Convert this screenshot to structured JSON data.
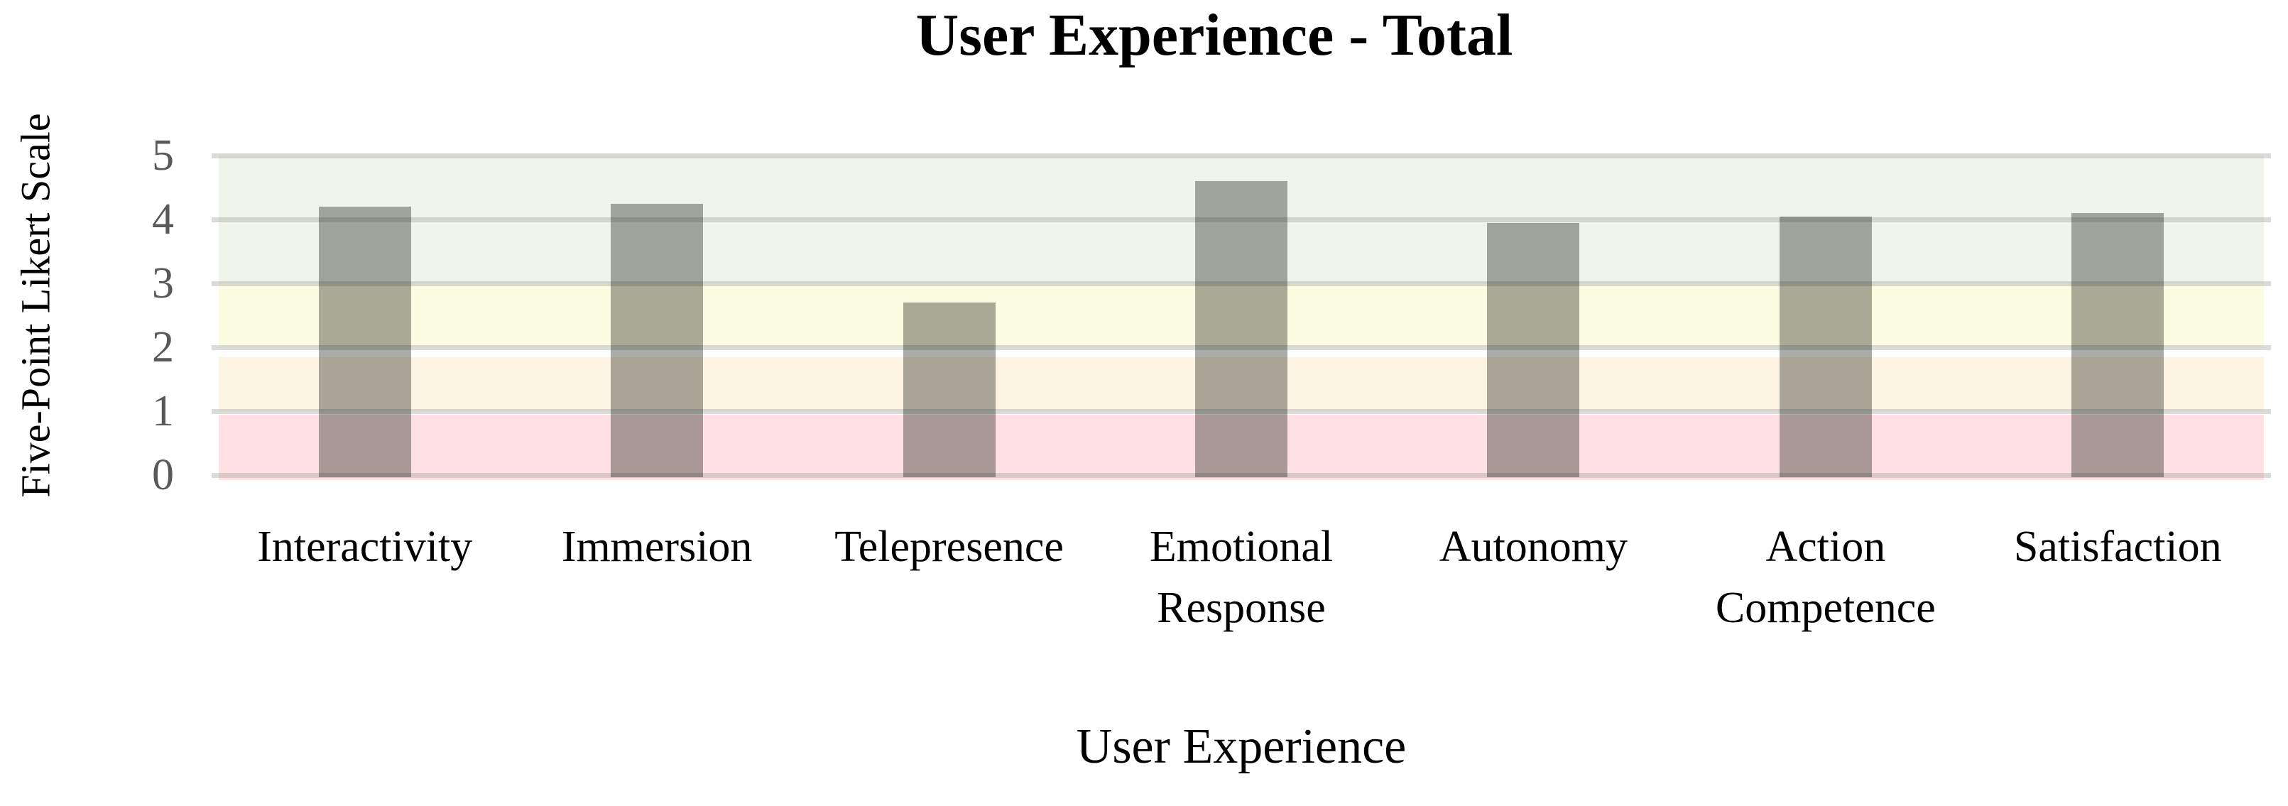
{
  "title": "User Experience - Total",
  "x_axis": {
    "title": "User Experience"
  },
  "y_axis": {
    "title": "Five-Point Likert Scale"
  },
  "chart_data": {
    "type": "bar",
    "title": "User Experience - Total",
    "xlabel": "User Experience",
    "ylabel": "Five-Point Likert Scale",
    "categories": [
      "Interactivity",
      "Immersion",
      "Telepresence",
      "Emotional Response",
      "Autonomy",
      "Action Competence",
      "Satisfaction"
    ],
    "values": [
      4.2,
      4.25,
      2.7,
      4.6,
      3.95,
      4.05,
      4.1
    ],
    "ylim": [
      0,
      5
    ],
    "yticks": [
      0,
      1,
      2,
      3,
      4,
      5
    ],
    "grid": true,
    "legend": "none",
    "background_bands": [
      {
        "from": 3,
        "to": 5,
        "color": "#eff5ea",
        "meaning": "high-zone"
      },
      {
        "from": 2,
        "to": 3,
        "color": "#fcfce2",
        "meaning": "mid-zone"
      },
      {
        "from": 1,
        "to": 2,
        "color": "#fdf4e4",
        "meaning": "low-mid-zone"
      },
      {
        "from": 0,
        "to": 1,
        "color": "#ffe1e3",
        "meaning": "low-zone"
      }
    ],
    "colors": {
      "bar": "#aaaca8",
      "gridline": "#d9d9d9",
      "tick_label": "#595959",
      "title": "#000000"
    }
  }
}
